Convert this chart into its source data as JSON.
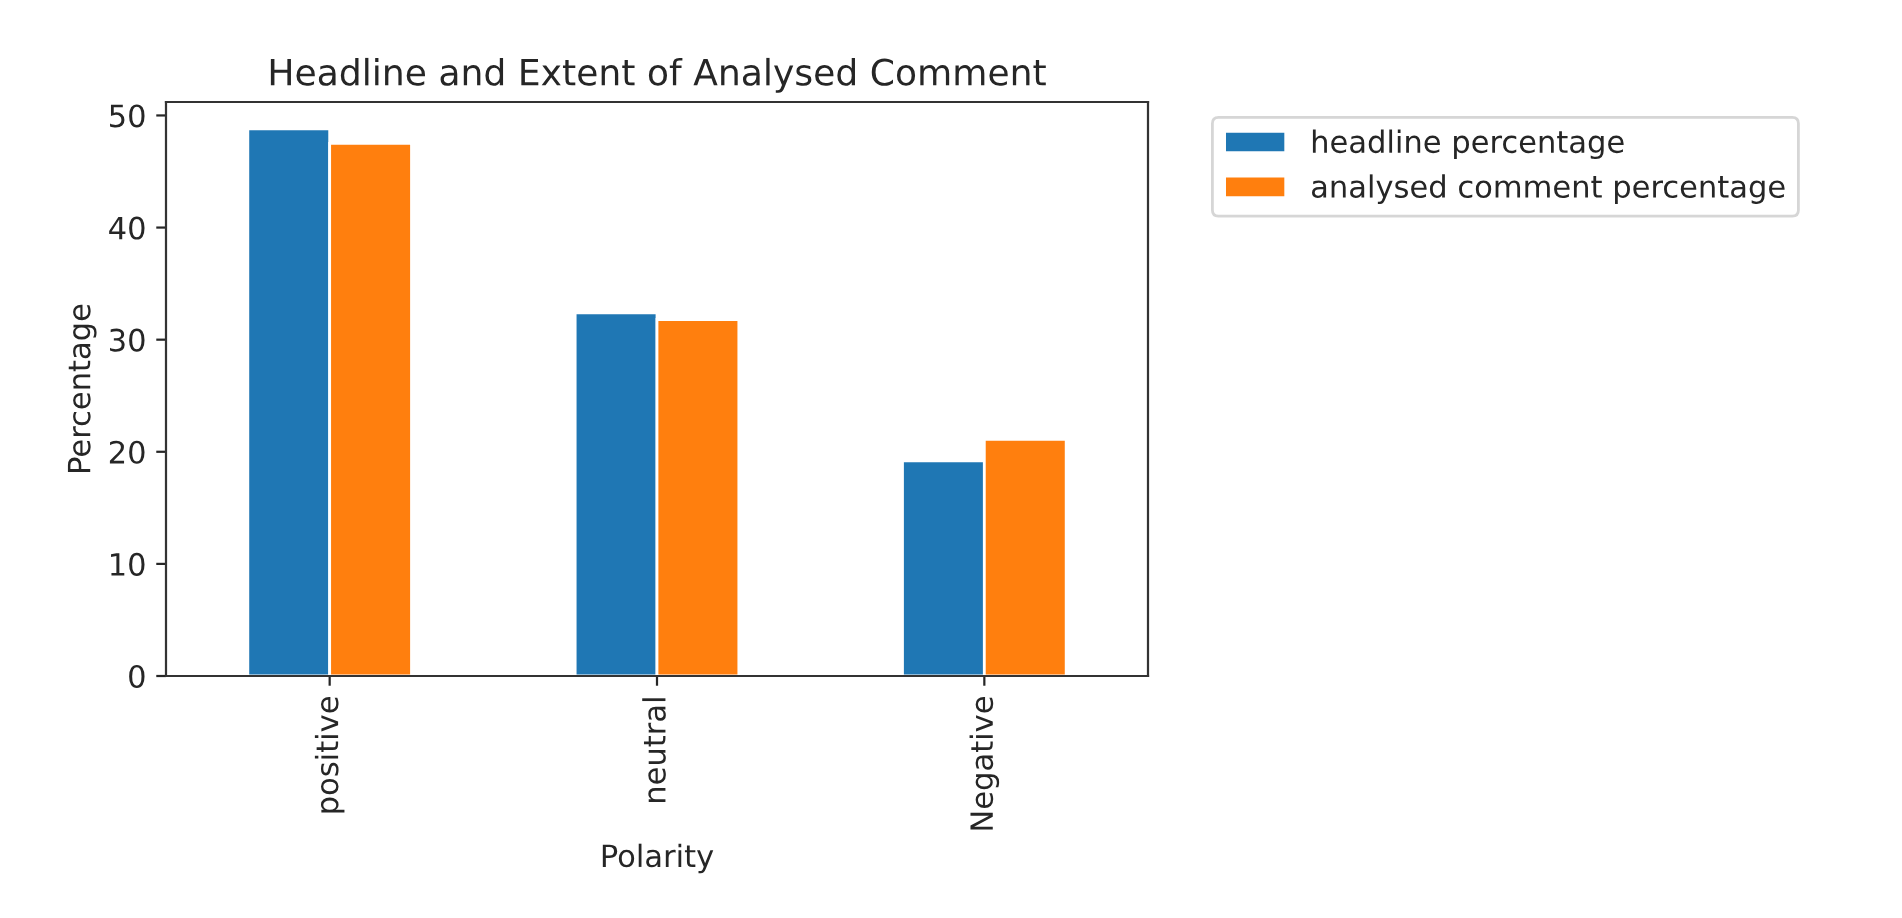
{
  "chart_data": {
    "type": "bar",
    "title": "Headline and Extent of Analysed Comment",
    "xlabel": "Polarity",
    "ylabel": "Percentage",
    "categories": [
      "positive",
      "neutral",
      "Negative"
    ],
    "series": [
      {
        "name": "headline percentage",
        "color": "#1f77b4",
        "values": [
          48.8,
          32.4,
          19.2
        ]
      },
      {
        "name": "analysed comment percentage",
        "color": "#ff7f0e",
        "values": [
          47.5,
          31.8,
          21.1
        ]
      }
    ],
    "ylim": [
      0,
      51.2
    ],
    "yticks": [
      0,
      10,
      20,
      30,
      40,
      50
    ],
    "grid": false,
    "legend": "top right"
  }
}
